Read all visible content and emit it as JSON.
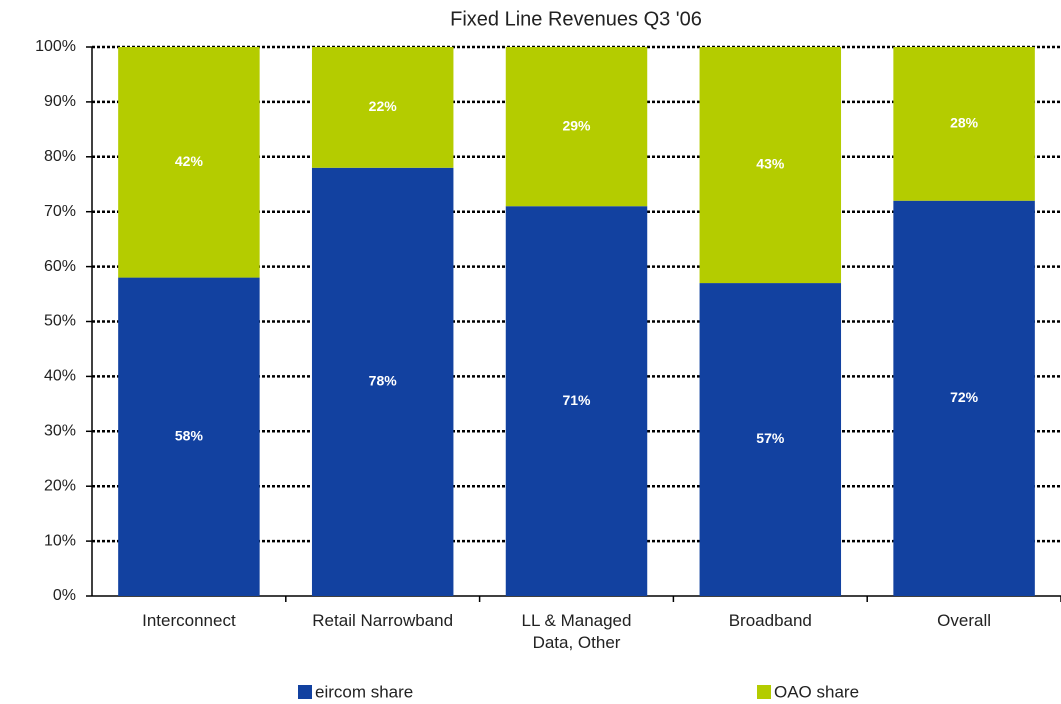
{
  "chart_data": {
    "type": "stacked_bar",
    "title": "Fixed Line Revenues Q3 '06",
    "categories": [
      "Interconnect",
      "Retail Narrowband",
      "LL & Managed Data, Other",
      "Broadband",
      "Overall"
    ],
    "series": [
      {
        "name": "eircom share",
        "color": "#1241a0",
        "values": [
          58,
          78,
          71,
          57,
          72
        ],
        "value_labels": [
          "58%",
          "78%",
          "71%",
          "57%",
          "72%"
        ]
      },
      {
        "name": "OAO share",
        "color": "#b4cc00",
        "values": [
          42,
          22,
          29,
          43,
          28
        ],
        "value_labels": [
          "42%",
          "22%",
          "29%",
          "43%",
          "28%"
        ]
      }
    ],
    "ylim": [
      0,
      100
    ],
    "yticks": [
      {
        "value": 0,
        "label": "0%"
      },
      {
        "value": 10,
        "label": "10%"
      },
      {
        "value": 20,
        "label": "20%"
      },
      {
        "value": 30,
        "label": "30%"
      },
      {
        "value": 40,
        "label": "40%"
      },
      {
        "value": 50,
        "label": "50%"
      },
      {
        "value": 60,
        "label": "60%"
      },
      {
        "value": 70,
        "label": "70%"
      },
      {
        "value": 80,
        "label": "80%"
      },
      {
        "value": 90,
        "label": "90%"
      },
      {
        "value": 100,
        "label": "100%"
      }
    ],
    "grid": true
  }
}
